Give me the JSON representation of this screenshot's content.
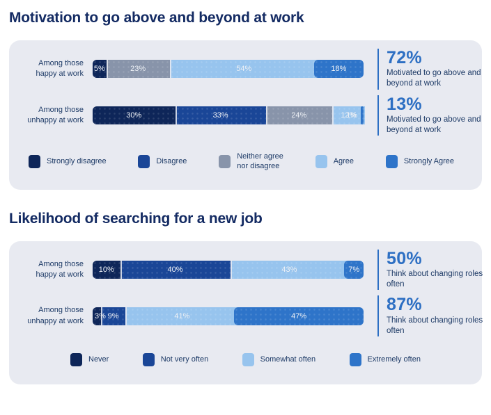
{
  "theme": {
    "title_color": "#142b63",
    "card_background": "#e8eaf1",
    "stat_color": "#2d6fc3",
    "label_color": "#1d3a66",
    "bar_label_color": "#f2f5fa"
  },
  "chart_data": [
    {
      "type": "bar",
      "variant": "horizontal-stacked",
      "title": "Motivation to go above and beyond at work",
      "unit": "%",
      "xlim": [
        0,
        100
      ],
      "grid": false,
      "legend_position": "bottom",
      "legend": [
        {
          "label": "Strongly disagree",
          "color": "#0e2659"
        },
        {
          "label": "Disagree",
          "color": "#1a4697"
        },
        {
          "label": "Neither agree\nnor disagree",
          "color": "#8894aa"
        },
        {
          "label": "Agree",
          "color": "#97c4ee"
        },
        {
          "label": "Strongly Agree",
          "color": "#2e74c9"
        }
      ],
      "rows": [
        {
          "label": "Among those\nhappy at work",
          "segments": [
            {
              "name": "Strongly disagree",
              "pct": 5,
              "display": "5%",
              "color": "#0e2659"
            },
            {
              "name": "Neither agree nor disagree",
              "pct": 23,
              "display": "23%",
              "color": "#8894aa"
            },
            {
              "name": "Agree",
              "pct": 54,
              "display": "54%",
              "color": "#97c4ee"
            },
            {
              "name": "Strongly Agree",
              "pct": 18,
              "display": "18%",
              "color": "#2e74c9"
            }
          ],
          "stat": {
            "value": "72%",
            "caption": "Motivated to go above and beyond at work"
          }
        },
        {
          "label": "Among those\nunhappy at work",
          "segments": [
            {
              "name": "Strongly disagree",
              "pct": 30,
              "display": "30%",
              "color": "#0e2659"
            },
            {
              "name": "Disagree",
              "pct": 33,
              "display": "33%",
              "color": "#1a4697"
            },
            {
              "name": "Neither agree nor disagree",
              "pct": 24,
              "display": "24%",
              "color": "#8894aa"
            },
            {
              "name": "Agree",
              "pct": 12,
              "display": "12%",
              "color": "#97c4ee"
            },
            {
              "name": "Strongly Agree",
              "pct": 1,
              "display": "1%",
              "color": "#2e74c9"
            }
          ],
          "stat": {
            "value": "13%",
            "caption": "Motivated to go above and beyond at work"
          }
        }
      ]
    },
    {
      "type": "bar",
      "variant": "horizontal-stacked",
      "title": "Likelihood of searching for a new job",
      "unit": "%",
      "xlim": [
        0,
        100
      ],
      "grid": false,
      "legend_position": "bottom",
      "legend": [
        {
          "label": "Never",
          "color": "#0e2659"
        },
        {
          "label": "Not very often",
          "color": "#1a4697"
        },
        {
          "label": "Somewhat often",
          "color": "#97c4ee"
        },
        {
          "label": "Extremely often",
          "color": "#2e74c9"
        }
      ],
      "rows": [
        {
          "label": "Among those\nhappy at work",
          "segments": [
            {
              "name": "Never",
              "pct": 10,
              "display": "10%",
              "color": "#0e2659"
            },
            {
              "name": "Not very often",
              "pct": 40,
              "display": "40%",
              "color": "#1a4697"
            },
            {
              "name": "Somewhat often",
              "pct": 43,
              "display": "43%",
              "color": "#97c4ee"
            },
            {
              "name": "Extremely often",
              "pct": 7,
              "display": "7%",
              "color": "#2e74c9"
            }
          ],
          "stat": {
            "value": "50%",
            "caption": "Think about changing roles often"
          }
        },
        {
          "label": "Among those\nunhappy at work",
          "segments": [
            {
              "name": "Never",
              "pct": 3,
              "display": "3%",
              "color": "#0e2659"
            },
            {
              "name": "Not very often",
              "pct": 9,
              "display": "9%",
              "color": "#1a4697"
            },
            {
              "name": "Somewhat often",
              "pct": 41,
              "display": "41%",
              "color": "#97c4ee"
            },
            {
              "name": "Extremely often",
              "pct": 47,
              "display": "47%",
              "color": "#2e74c9"
            }
          ],
          "stat": {
            "value": "87%",
            "caption": "Think about changing roles often"
          }
        }
      ]
    }
  ]
}
